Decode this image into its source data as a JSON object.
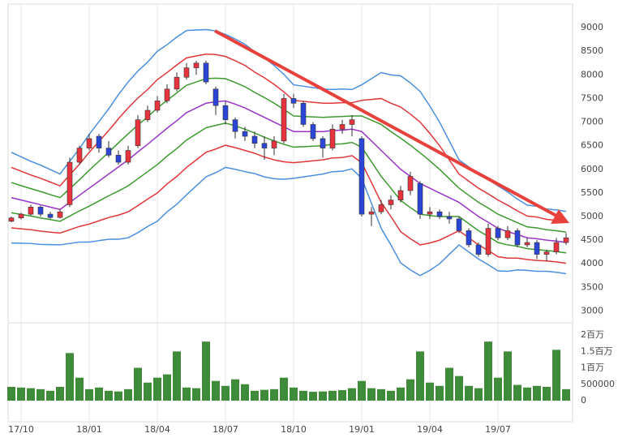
{
  "chart_data": {
    "type": "candlestick",
    "categories": [
      null,
      "17/10",
      null,
      null,
      null,
      null,
      null,
      null,
      "18/01",
      null,
      null,
      null,
      null,
      null,
      null,
      "18/04",
      null,
      null,
      null,
      null,
      null,
      null,
      "18/07",
      null,
      null,
      null,
      null,
      null,
      null,
      "18/10",
      null,
      null,
      null,
      null,
      null,
      null,
      "19/01",
      null,
      null,
      null,
      null,
      null,
      null,
      "19/04",
      null,
      null,
      null,
      null,
      null,
      null,
      "19/07",
      null,
      null,
      null,
      null,
      null,
      null,
      null
    ],
    "open": [
      4900,
      4970,
      5050,
      5200,
      5050,
      4980,
      5250,
      6150,
      6450,
      6700,
      6450,
      6300,
      6150,
      6500,
      7050,
      7250,
      7450,
      7700,
      7950,
      8150,
      8250,
      7700,
      7350,
      7050,
      6800,
      6700,
      6550,
      6450,
      6600,
      7500,
      7400,
      6950,
      6650,
      6450,
      6850,
      6950,
      6650,
      5050,
      5100,
      5250,
      5350,
      5550,
      5700,
      5050,
      5100,
      5000,
      4950,
      4700,
      4400,
      4200,
      4750,
      4550,
      4700,
      4400,
      4450,
      4200,
      4250,
      4450
    ],
    "high": [
      5000,
      5080,
      5250,
      5230,
      5100,
      5150,
      6250,
      6500,
      6750,
      6750,
      6600,
      6400,
      6500,
      7150,
      7350,
      7550,
      7800,
      8050,
      8250,
      8300,
      8300,
      7750,
      7450,
      7100,
      6900,
      6800,
      6700,
      6700,
      7600,
      7600,
      7450,
      7000,
      6700,
      6950,
      7050,
      7150,
      6700,
      5200,
      5350,
      5450,
      5650,
      5950,
      5750,
      5200,
      5150,
      5100,
      5000,
      4750,
      4450,
      4850,
      4800,
      4800,
      4750,
      4550,
      4500,
      4300,
      4550,
      4650
    ],
    "low": [
      4880,
      4940,
      5020,
      5000,
      4950,
      4960,
      5200,
      6100,
      6400,
      6350,
      6250,
      6100,
      6100,
      6450,
      7000,
      7200,
      7400,
      7650,
      7900,
      8000,
      7800,
      7150,
      6950,
      6650,
      6600,
      6450,
      6200,
      6300,
      6550,
      7300,
      6900,
      6600,
      6250,
      6400,
      6750,
      6700,
      5000,
      4800,
      5050,
      5150,
      5300,
      5450,
      4950,
      4950,
      4950,
      4850,
      4650,
      4350,
      4150,
      4150,
      4500,
      4500,
      4350,
      4350,
      4100,
      4050,
      4200,
      4400
    ],
    "close": [
      4970,
      5050,
      5200,
      5050,
      4980,
      5100,
      6150,
      6450,
      6650,
      6450,
      6300,
      6150,
      6400,
      7050,
      7250,
      7450,
      7700,
      7950,
      8150,
      8250,
      7850,
      7350,
      7050,
      6800,
      6700,
      6550,
      6450,
      6600,
      7500,
      7400,
      6950,
      6650,
      6450,
      6850,
      6950,
      7050,
      5050,
      5100,
      5250,
      5350,
      5550,
      5850,
      5050,
      5100,
      5000,
      4950,
      4700,
      4400,
      4200,
      4750,
      4550,
      4700,
      4400,
      4450,
      4200,
      4250,
      4450,
      4550
    ],
    "up_color": "#e8323c",
    "down_color": "#2a46d8",
    "lines": [
      {
        "color": "#4a8fe0",
        "values": [
          6360,
          6265,
          6170,
          6090,
          5995,
          5900,
          6170,
          6440,
          6740,
          7010,
          7280,
          7580,
          7850,
          8080,
          8270,
          8500,
          8640,
          8800,
          8940,
          8950,
          8960,
          8930,
          8860,
          8760,
          8650,
          8490,
          8360,
          8200,
          8010,
          7790,
          7760,
          7730,
          7700,
          7690,
          7700,
          7690,
          7790,
          7920,
          8050,
          8000,
          7980,
          7830,
          7650,
          7340,
          7000,
          6600,
          6200,
          6050,
          5900,
          5780,
          5650,
          5520,
          5370,
          5240,
          5220,
          5160,
          5140,
          5110
        ]
      },
      {
        "color": "#e0363a",
        "values": [
          6040,
          5960,
          5880,
          5810,
          5730,
          5650,
          5880,
          6110,
          6360,
          6590,
          6820,
          7070,
          7300,
          7510,
          7690,
          7900,
          8050,
          8210,
          8360,
          8400,
          8440,
          8430,
          8390,
          8300,
          8200,
          8060,
          7940,
          7800,
          7640,
          7460,
          7440,
          7420,
          7400,
          7400,
          7410,
          7410,
          7460,
          7480,
          7500,
          7400,
          7320,
          7170,
          7000,
          6760,
          6500,
          6200,
          5900,
          5750,
          5600,
          5480,
          5350,
          5240,
          5120,
          5010,
          4990,
          4940,
          4920,
          4890
        ]
      },
      {
        "color": "#3c9a2e",
        "values": [
          5720,
          5655,
          5590,
          5530,
          5465,
          5400,
          5590,
          5780,
          5980,
          6170,
          6360,
          6560,
          6750,
          6940,
          7110,
          7300,
          7460,
          7620,
          7780,
          7850,
          7920,
          7930,
          7920,
          7840,
          7750,
          7630,
          7520,
          7400,
          7270,
          7130,
          7120,
          7110,
          7100,
          7110,
          7120,
          7130,
          7130,
          7040,
          6950,
          6800,
          6660,
          6510,
          6350,
          6180,
          6000,
          5800,
          5600,
          5450,
          5300,
          5180,
          5050,
          4960,
          4870,
          4780,
          4760,
          4720,
          4700,
          4670
        ]
      },
      {
        "color": "#9a34c8",
        "values": [
          5400,
          5350,
          5300,
          5250,
          5200,
          5150,
          5300,
          5450,
          5600,
          5750,
          5900,
          6050,
          6200,
          6370,
          6530,
          6700,
          6870,
          7030,
          7200,
          7300,
          7400,
          7430,
          7450,
          7380,
          7300,
          7200,
          7100,
          7000,
          6900,
          6800,
          6800,
          6800,
          6800,
          6820,
          6830,
          6850,
          6800,
          6600,
          6400,
          6200,
          6000,
          5850,
          5700,
          5600,
          5500,
          5400,
          5300,
          5150,
          5000,
          4880,
          4750,
          4680,
          4620,
          4550,
          4530,
          4500,
          4480,
          4450
        ]
      },
      {
        "color": "#3c9a2e",
        "values": [
          5080,
          5045,
          5010,
          4970,
          4935,
          4900,
          5010,
          5120,
          5220,
          5330,
          5440,
          5540,
          5650,
          5800,
          5950,
          6100,
          6280,
          6440,
          6620,
          6750,
          6880,
          6930,
          6980,
          6920,
          6850,
          6770,
          6680,
          6600,
          6530,
          6470,
          6480,
          6490,
          6500,
          6530,
          6540,
          6570,
          6470,
          6160,
          5850,
          5600,
          5340,
          5190,
          5050,
          5020,
          5000,
          5000,
          5000,
          4850,
          4700,
          4580,
          4450,
          4400,
          4370,
          4320,
          4300,
          4280,
          4260,
          4230
        ]
      },
      {
        "color": "#e0363a",
        "values": [
          4760,
          4740,
          4720,
          4690,
          4670,
          4650,
          4720,
          4790,
          4840,
          4910,
          4980,
          5030,
          5100,
          5230,
          5370,
          5500,
          5690,
          5850,
          6040,
          6200,
          6360,
          6430,
          6510,
          6460,
          6400,
          6340,
          6260,
          6200,
          6160,
          6140,
          6160,
          6180,
          6200,
          6240,
          6250,
          6290,
          6140,
          5720,
          5300,
          5000,
          4680,
          4530,
          4400,
          4440,
          4500,
          4600,
          4700,
          4550,
          4400,
          4280,
          4150,
          4120,
          4120,
          4090,
          4070,
          4060,
          4040,
          4010
        ]
      },
      {
        "color": "#4a8fe0",
        "values": [
          4440,
          4435,
          4430,
          4410,
          4405,
          4400,
          4430,
          4460,
          4460,
          4490,
          4520,
          4520,
          4550,
          4660,
          4790,
          4900,
          5100,
          5260,
          5460,
          5650,
          5840,
          5930,
          6040,
          6000,
          5950,
          5910,
          5840,
          5800,
          5790,
          5810,
          5840,
          5870,
          5900,
          5950,
          5960,
          6010,
          5810,
          5280,
          4750,
          4400,
          4020,
          3870,
          3750,
          3860,
          4000,
          4200,
          4400,
          4250,
          4100,
          3980,
          3850,
          3840,
          3870,
          3860,
          3840,
          3840,
          3820,
          3790
        ]
      }
    ],
    "ylim": [
      2750,
      9500
    ],
    "yticks": [
      3000,
      3500,
      4000,
      4500,
      5000,
      5500,
      6000,
      6500,
      7000,
      7500,
      8000,
      8500,
      9000
    ],
    "grid": true,
    "volume": {
      "color": "#3f8b3a",
      "values": [
        420000,
        400000,
        380000,
        350000,
        300000,
        420000,
        1450000,
        700000,
        350000,
        400000,
        300000,
        280000,
        350000,
        1000000,
        550000,
        700000,
        800000,
        1500000,
        400000,
        380000,
        1800000,
        600000,
        450000,
        650000,
        500000,
        300000,
        330000,
        350000,
        700000,
        400000,
        300000,
        270000,
        280000,
        300000,
        320000,
        380000,
        600000,
        380000,
        350000,
        300000,
        400000,
        650000,
        1500000,
        550000,
        450000,
        1000000,
        750000,
        450000,
        380000,
        1800000,
        700000,
        1500000,
        480000,
        400000,
        450000,
        420000,
        1550000,
        350000
      ],
      "ylim": [
        0,
        2200000
      ],
      "yticks": [
        0,
        500000,
        {
          "value": 1000000,
          "label": "1百万"
        },
        {
          "value": 1500000,
          "label": "1.5百万"
        },
        {
          "value": 2000000,
          "label": "2百万"
        }
      ]
    }
  }
}
